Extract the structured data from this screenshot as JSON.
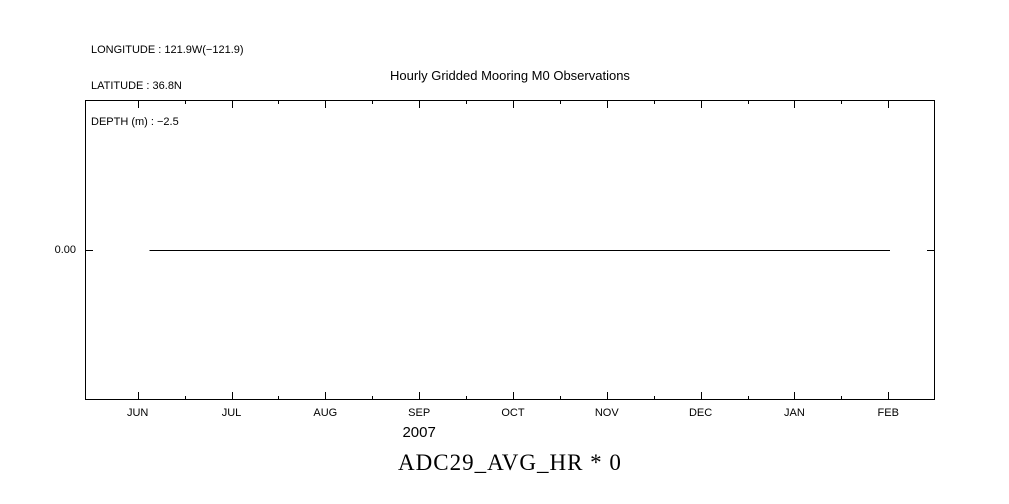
{
  "meta": {
    "longitude_line": "LONGITUDE : 121.9W(−121.9)",
    "latitude_line": "LATITUDE : 36.8N",
    "depth_line": "DEPTH (m) : −2.5"
  },
  "chart_data": {
    "type": "line",
    "title": "Hourly Gridded Mooring M0 Observations",
    "x_axis": {
      "labels": [
        "JUN",
        "JUL",
        "AUG",
        "SEP",
        "OCT",
        "NOV",
        "DEC",
        "JAN",
        "FEB"
      ],
      "year_label": "2007",
      "year_label_tick_index": 3,
      "first_tick_frac": 0.062,
      "last_tick_frac": 0.945
    },
    "y_axis": {
      "ticks": [
        {
          "label": "0.00",
          "frac": 0.5
        }
      ],
      "ylim": [
        -1,
        1
      ]
    },
    "series": [
      {
        "name": "ADC29_AVG_HR * 0",
        "y_value": 0.0,
        "x_start_frac": 0.076,
        "x_end_frac": 0.947
      }
    ],
    "grid": false,
    "legend": "none",
    "line_color": "#000000",
    "frame_color": "#000000"
  },
  "footer": {
    "label": "ADC29_AVG_HR * 0"
  }
}
